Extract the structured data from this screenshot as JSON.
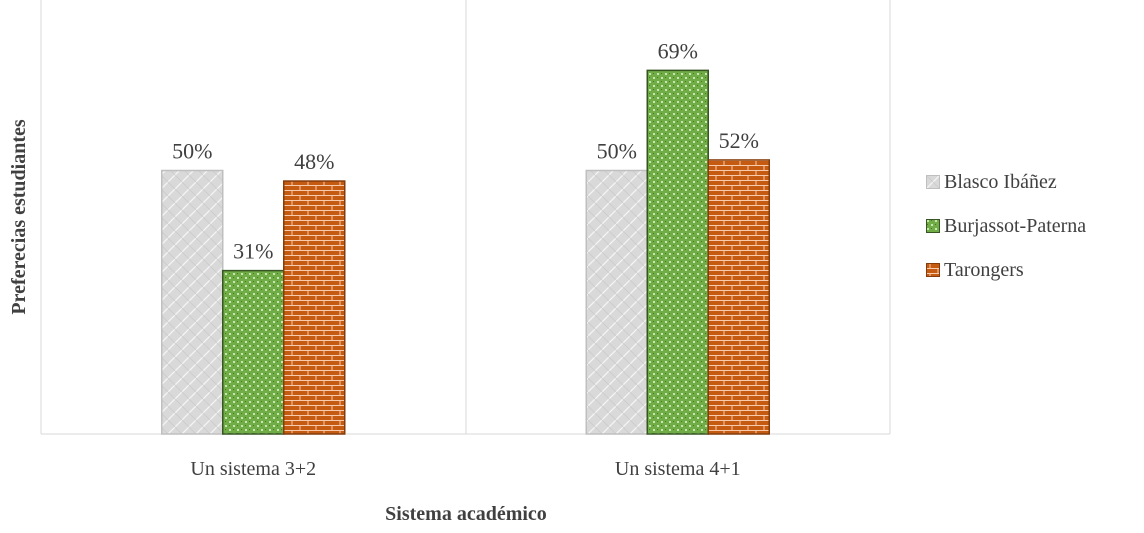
{
  "chart_data": {
    "type": "bar",
    "categories": [
      "Un sistema 3+2",
      "Un sistema 4+1"
    ],
    "series": [
      {
        "name": "Blasco Ibáñez",
        "values": [
          50,
          50
        ],
        "labels": [
          "50%",
          "50%"
        ],
        "color": "#d9d9d9",
        "pattern": "diagonal-weave"
      },
      {
        "name": "Burjassot-Paterna",
        "values": [
          31,
          69
        ],
        "labels": [
          "31%",
          "69%"
        ],
        "color": "#70ad47",
        "pattern": "dots"
      },
      {
        "name": "Tarongers",
        "values": [
          48,
          52
        ],
        "labels": [
          "48%",
          "52%"
        ],
        "color": "#c55a11",
        "pattern": "brick"
      }
    ],
    "xlabel": "Sistema académico",
    "ylabel": "Preferecias estudiantes",
    "ylim": [
      0,
      80
    ],
    "grid": false,
    "legend": "right"
  }
}
